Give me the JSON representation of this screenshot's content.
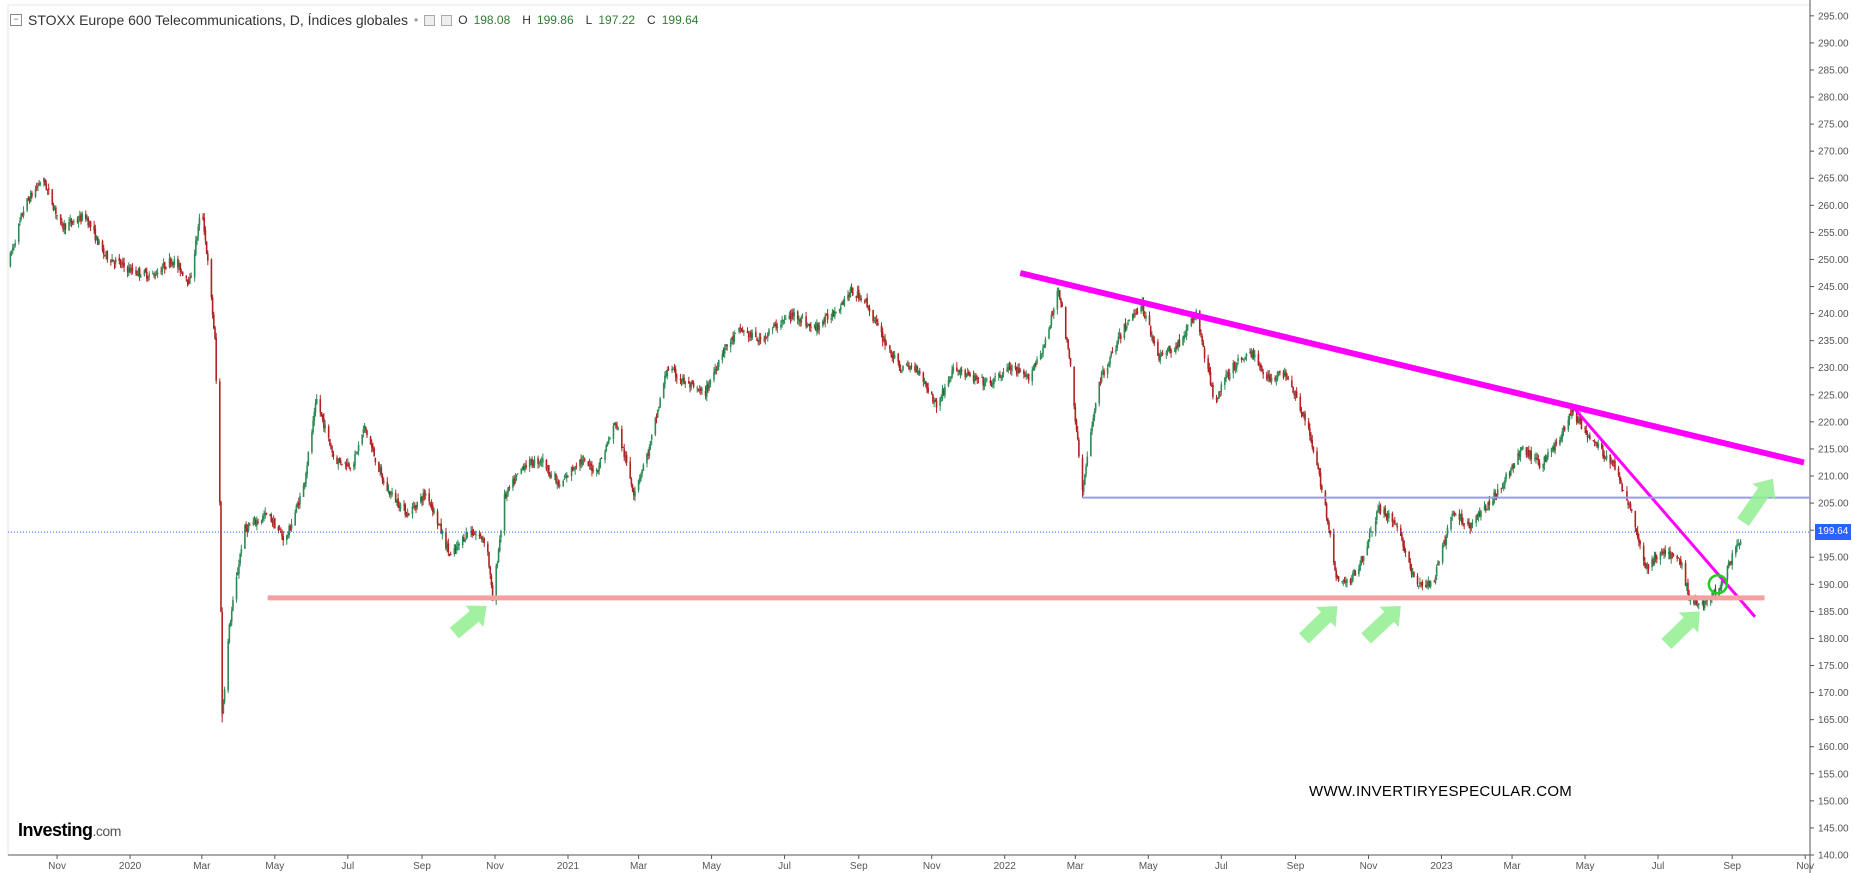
{
  "header": {
    "title": "STOXX Europe 600 Telecommunications, D, Índices globales",
    "open_label": "O",
    "open": "198.08",
    "high_label": "H",
    "high": "199.86",
    "low_label": "L",
    "low": "197.22",
    "close_label": "C",
    "close": "199.64"
  },
  "logo": {
    "name": "Investing",
    "tld": ".com"
  },
  "watermark": "WWW.INVERTIRYESPECULAR.COM",
  "last_price_label": "199.64",
  "colors": {
    "up": "#2e8b57",
    "down": "#b22222",
    "resistance": "#ff00ff",
    "support": "#f4a0a0",
    "level": "#9999ee",
    "arrow": "#90ee90",
    "price_line": "#2962ff"
  },
  "chart_data": {
    "type": "candlestick",
    "title": "STOXX Europe 600 Telecommunications, D, Índices globales",
    "xlabel": "",
    "ylabel": "",
    "ylim": [
      140,
      297
    ],
    "y_ticks": [
      "295.00",
      "290.00",
      "285.00",
      "280.00",
      "275.00",
      "270.00",
      "265.00",
      "260.00",
      "255.00",
      "250.00",
      "245.00",
      "240.00",
      "235.00",
      "230.00",
      "225.00",
      "220.00",
      "215.00",
      "210.00",
      "205.00",
      "200.00",
      "195.00",
      "190.00",
      "185.00",
      "180.00",
      "175.00",
      "170.00",
      "165.00",
      "160.00",
      "155.00",
      "150.00",
      "145.00",
      "140.00"
    ],
    "x_ticks": [
      "Nov",
      "2020",
      "Mar",
      "May",
      "Jul",
      "Sep",
      "Nov",
      "2021",
      "Mar",
      "May",
      "Jul",
      "Sep",
      "Nov",
      "2022",
      "Mar",
      "May",
      "Jul",
      "Sep",
      "Nov",
      "2023",
      "Mar",
      "May",
      "Jul",
      "Sep",
      "Nov"
    ],
    "x_range": [
      "2019-09-21",
      "2023-11-05"
    ],
    "last_price": 199.64,
    "price_path": [
      [
        "2019-09-21",
        249
      ],
      [
        "2019-10-05",
        260
      ],
      [
        "2019-10-20",
        265
      ],
      [
        "2019-11-05",
        256
      ],
      [
        "2019-11-25",
        258
      ],
      [
        "2019-12-10",
        251
      ],
      [
        "2020-01-01",
        248
      ],
      [
        "2020-01-20",
        247
      ],
      [
        "2020-02-05",
        250
      ],
      [
        "2020-02-20",
        246
      ],
      [
        "2020-03-01",
        260
      ],
      [
        "2020-03-08",
        245
      ],
      [
        "2020-03-12",
        235
      ],
      [
        "2020-03-16",
        205
      ],
      [
        "2020-03-18",
        166
      ],
      [
        "2020-03-24",
        182
      ],
      [
        "2020-04-05",
        200
      ],
      [
        "2020-04-25",
        203
      ],
      [
        "2020-05-10",
        198
      ],
      [
        "2020-05-25",
        208
      ],
      [
        "2020-06-05",
        224
      ],
      [
        "2020-06-20",
        213
      ],
      [
        "2020-07-05",
        212
      ],
      [
        "2020-07-15",
        219
      ],
      [
        "2020-08-01",
        208
      ],
      [
        "2020-08-20",
        203
      ],
      [
        "2020-09-05",
        207
      ],
      [
        "2020-09-25",
        195
      ],
      [
        "2020-10-10",
        200
      ],
      [
        "2020-10-25",
        198
      ],
      [
        "2020-10-30",
        187
      ],
      [
        "2020-11-09",
        206
      ],
      [
        "2020-11-25",
        212
      ],
      [
        "2020-12-10",
        213
      ],
      [
        "2020-12-25",
        208
      ],
      [
        "2021-01-10",
        213
      ],
      [
        "2021-01-25",
        211
      ],
      [
        "2021-02-10",
        220
      ],
      [
        "2021-02-25",
        207
      ],
      [
        "2021-03-10",
        215
      ],
      [
        "2021-03-25",
        230
      ],
      [
        "2021-04-10",
        227
      ],
      [
        "2021-04-25",
        225
      ],
      [
        "2021-05-10",
        233
      ],
      [
        "2021-05-25",
        237
      ],
      [
        "2021-06-10",
        235
      ],
      [
        "2021-06-25",
        238
      ],
      [
        "2021-07-10",
        240
      ],
      [
        "2021-07-25",
        237
      ],
      [
        "2021-08-10",
        240
      ],
      [
        "2021-08-25",
        244
      ],
      [
        "2021-09-05",
        243
      ],
      [
        "2021-09-20",
        236
      ],
      [
        "2021-10-05",
        230
      ],
      [
        "2021-10-20",
        230
      ],
      [
        "2021-11-05",
        223
      ],
      [
        "2021-11-20",
        230
      ],
      [
        "2021-12-05",
        228
      ],
      [
        "2021-12-20",
        227
      ],
      [
        "2022-01-05",
        230
      ],
      [
        "2022-01-20",
        228
      ],
      [
        "2022-02-05",
        235
      ],
      [
        "2022-02-15",
        245
      ],
      [
        "2022-02-25",
        230
      ],
      [
        "2022-03-07",
        207
      ],
      [
        "2022-03-20",
        227
      ],
      [
        "2022-04-10",
        237
      ],
      [
        "2022-04-25",
        242
      ],
      [
        "2022-05-10",
        232
      ],
      [
        "2022-05-25",
        234
      ],
      [
        "2022-06-10",
        240
      ],
      [
        "2022-06-25",
        224
      ],
      [
        "2022-07-10",
        230
      ],
      [
        "2022-07-25",
        233
      ],
      [
        "2022-08-10",
        228
      ],
      [
        "2022-08-25",
        229
      ],
      [
        "2022-09-10",
        220
      ],
      [
        "2022-09-25",
        206
      ],
      [
        "2022-10-05",
        191
      ],
      [
        "2022-10-15",
        190
      ],
      [
        "2022-10-25",
        194
      ],
      [
        "2022-11-10",
        204
      ],
      [
        "2022-11-25",
        201
      ],
      [
        "2022-12-10",
        190
      ],
      [
        "2022-12-25",
        190
      ],
      [
        "2023-01-10",
        203
      ],
      [
        "2023-01-25",
        201
      ],
      [
        "2023-02-10",
        205
      ],
      [
        "2023-02-25",
        210
      ],
      [
        "2023-03-10",
        215
      ],
      [
        "2023-03-25",
        212
      ],
      [
        "2023-04-10",
        217
      ],
      [
        "2023-04-20",
        222
      ],
      [
        "2023-05-05",
        217
      ],
      [
        "2023-05-25",
        212
      ],
      [
        "2023-06-10",
        203
      ],
      [
        "2023-06-20",
        193
      ],
      [
        "2023-07-05",
        196
      ],
      [
        "2023-07-20",
        194
      ],
      [
        "2023-07-28",
        187
      ],
      [
        "2023-08-05",
        186
      ],
      [
        "2023-08-20",
        189
      ],
      [
        "2023-09-01",
        195
      ],
      [
        "2023-09-10",
        199.64
      ]
    ],
    "lines": [
      {
        "name": "resistance-line",
        "from": [
          "2022-01-14",
          247.5
        ],
        "to": [
          "2023-10-31",
          212.5
        ]
      },
      {
        "name": "downtrend-line",
        "from": [
          "2023-04-20",
          223
        ],
        "to": [
          "2023-09-20",
          184
        ]
      },
      {
        "name": "horizontal-level",
        "from": [
          "2022-03-07",
          206
        ],
        "to": [
          "2023-11-05",
          206
        ]
      },
      {
        "name": "support-line",
        "from": [
          "2020-04-25",
          187.5
        ],
        "to": [
          "2023-09-28",
          187.5
        ]
      }
    ],
    "arrows": [
      {
        "from": [
          "2020-09-28",
          181
        ],
        "to": [
          "2020-10-25",
          186
        ]
      },
      {
        "from": [
          "2022-09-08",
          180
        ],
        "to": [
          "2022-10-06",
          186
        ]
      },
      {
        "from": [
          "2022-10-30",
          180
        ],
        "to": [
          "2022-11-28",
          186
        ]
      },
      {
        "from": [
          "2023-07-08",
          179
        ],
        "to": [
          "2023-08-05",
          185
        ]
      },
      {
        "from": [
          "2023-09-10",
          201.5
        ],
        "to": [
          "2023-10-05",
          209.5
        ]
      }
    ],
    "markers": [
      {
        "name": "breakout-circle",
        "at": [
          "2023-08-20",
          190
        ]
      }
    ]
  }
}
